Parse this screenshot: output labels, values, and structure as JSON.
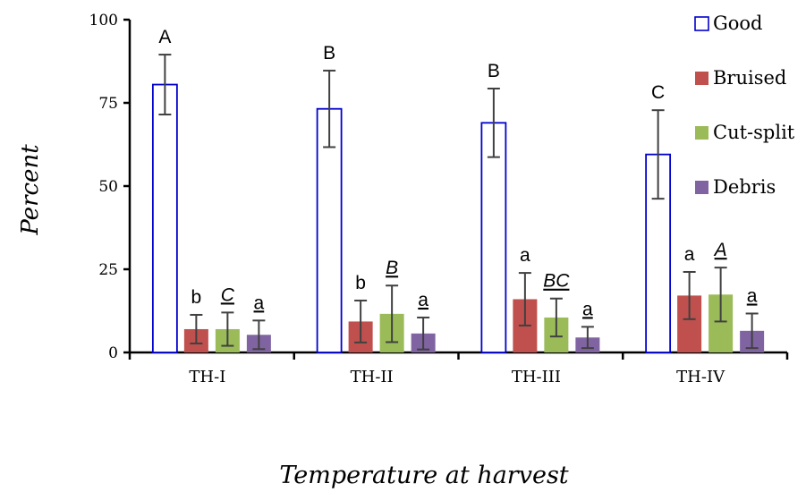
{
  "chart_data": {
    "type": "bar",
    "title": "",
    "xlabel": "Temperature at harvest",
    "ylabel": "Percent",
    "ylim": [
      0,
      100
    ],
    "yticks": [
      "0",
      "25",
      "50",
      "75",
      "100"
    ],
    "grid": false,
    "legend_position": "right",
    "categories": [
      "TH-I",
      "TH-II",
      "TH-III",
      "TH-IV"
    ],
    "series": [
      {
        "name": "Good",
        "color": "#0000cc",
        "style": "outline",
        "values": [
          80.5,
          73.2,
          69.0,
          59.5
        ],
        "errors": [
          9.0,
          11.5,
          10.3,
          13.3
        ],
        "labels": [
          "A",
          "B",
          "B",
          "C"
        ],
        "label_style": "plain"
      },
      {
        "name": "Bruised",
        "color": "#c0504d",
        "style": "fill",
        "values": [
          7.0,
          9.3,
          16.0,
          17.1
        ],
        "errors": [
          4.3,
          6.3,
          7.9,
          7.1
        ],
        "labels": [
          "b",
          "b",
          "a",
          "a"
        ],
        "label_style": "plain"
      },
      {
        "name": "Cut-split",
        "color": "#9bbb59",
        "style": "fill",
        "values": [
          7.0,
          11.6,
          10.5,
          17.4
        ],
        "errors": [
          5.0,
          8.5,
          5.7,
          8.1
        ],
        "labels": [
          "C",
          "B",
          "BC",
          "A"
        ],
        "label_style": "italic-underline"
      },
      {
        "name": "Debris",
        "color": "#8064a2",
        "style": "fill",
        "values": [
          5.3,
          5.7,
          4.5,
          6.5
        ],
        "errors": [
          4.3,
          4.8,
          3.2,
          5.2
        ],
        "labels": [
          "a",
          "a",
          "a",
          "a"
        ],
        "label_style": "underline"
      }
    ]
  }
}
